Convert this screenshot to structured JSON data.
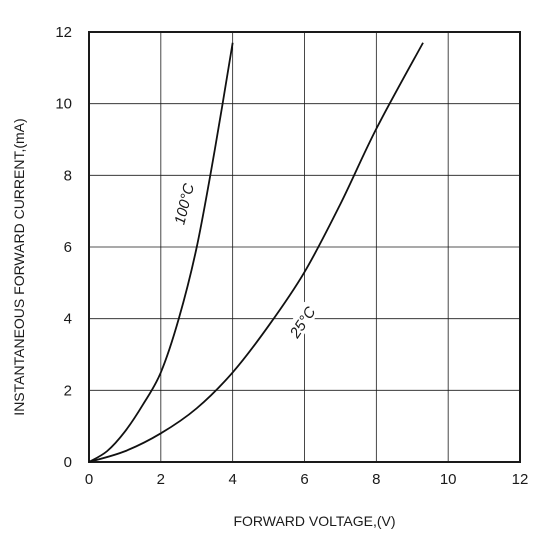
{
  "chart_data": {
    "type": "line",
    "xlabel": "FORWARD VOLTAGE,(V)",
    "ylabel": "INSTANTANEOUS FORWARD CURRENT,(mA)",
    "xlim": [
      0,
      12
    ],
    "ylim": [
      0,
      12
    ],
    "xticks": [
      "0",
      "2",
      "4",
      "6",
      "8",
      "10",
      "12"
    ],
    "yticks": [
      "0",
      "2",
      "4",
      "6",
      "8",
      "10",
      "12"
    ],
    "grid": true,
    "series": [
      {
        "name": "100°C",
        "x": [
          0,
          0.5,
          1.0,
          1.5,
          2.0,
          2.5,
          3.0,
          3.5,
          4.0
        ],
        "y": [
          0,
          0.3,
          0.85,
          1.6,
          2.5,
          4.0,
          6.0,
          8.7,
          11.7
        ]
      },
      {
        "name": "25°C",
        "x": [
          0,
          1,
          2,
          3,
          4,
          5,
          6,
          7,
          8,
          9.3
        ],
        "y": [
          0,
          0.3,
          0.8,
          1.5,
          2.5,
          3.8,
          5.3,
          7.2,
          9.3,
          11.7
        ]
      }
    ],
    "annotations": [
      {
        "text": "100°C",
        "series": "100°C",
        "x": 2.65,
        "y": 7.2
      },
      {
        "text": "25°C",
        "series": "25°C",
        "x": 5.95,
        "y": 3.9
      }
    ]
  }
}
